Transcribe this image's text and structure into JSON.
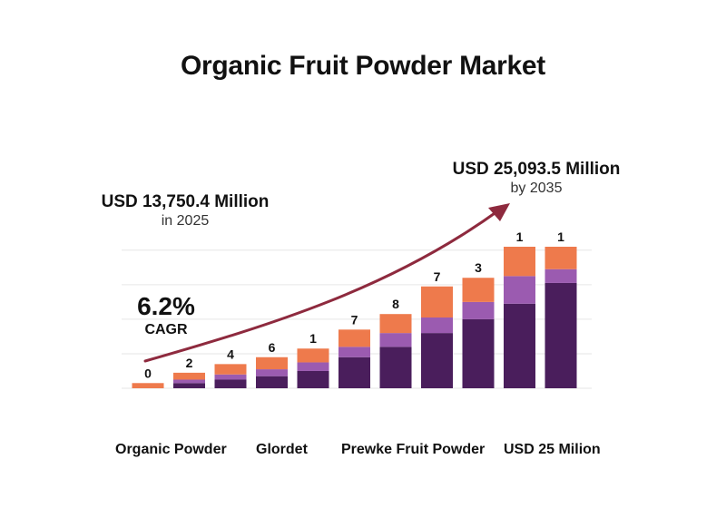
{
  "title": "Organic Fruit Powder Market",
  "callouts": {
    "start": {
      "value": "USD 13,750.4 Million",
      "sub": "in 2025"
    },
    "end": {
      "value": "USD 25,093.5 Million",
      "sub": "by 2035"
    }
  },
  "cagr": {
    "value": "6.2%",
    "label": "CAGR"
  },
  "colors": {
    "top_segment": "#EE7A4C",
    "mid_segment": "#9B5BB0",
    "base_segment": "#4A1E5C",
    "arrow": "#8E2A3E",
    "gridline": "#E6E6E6"
  },
  "chart_data": {
    "type": "bar",
    "stacked": true,
    "categories": [
      "",
      "",
      "",
      "",
      "",
      "",
      "",
      "",
      "",
      "",
      ""
    ],
    "series": [
      {
        "values": [
          0.0,
          1.5,
          2.5,
          3.5,
          5.0,
          9.0,
          12.0,
          16.0,
          20.0,
          24.5,
          30.5
        ]
      },
      {
        "values": [
          0.0,
          1.0,
          1.5,
          2.0,
          2.5,
          3.0,
          4.0,
          4.5,
          5.0,
          8.0,
          4.0
        ]
      },
      {
        "values": [
          1.5,
          2.0,
          3.0,
          3.5,
          4.0,
          5.0,
          5.5,
          9.0,
          7.0,
          8.5,
          6.5
        ]
      }
    ],
    "data_labels": [
      "0",
      "2",
      "4",
      "6",
      "1",
      "7",
      "8",
      "7",
      "3",
      "1",
      "1"
    ],
    "ylim": [
      0,
      41
    ],
    "grid": true,
    "xlabels": [
      "Organic Powder",
      "Glordet",
      "Prewke Fruit Powder",
      "USD 25 Milion"
    ]
  }
}
